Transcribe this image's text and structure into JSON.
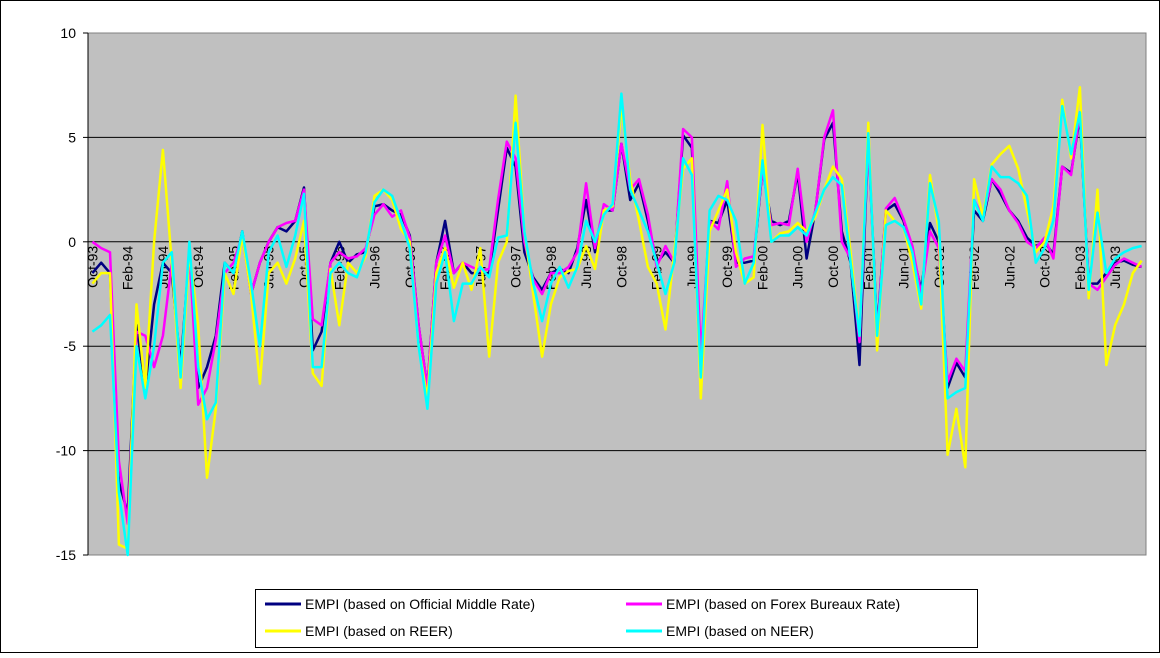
{
  "chart_data": {
    "type": "line",
    "categories": [
      "Oct-93",
      null,
      null,
      null,
      "Feb-94",
      null,
      null,
      null,
      "Jun-94",
      null,
      null,
      null,
      "Oct-94",
      null,
      null,
      null,
      "Feb-95",
      null,
      null,
      null,
      "Jun-95",
      null,
      null,
      null,
      "Oct-95",
      null,
      null,
      null,
      "Feb-96",
      null,
      null,
      null,
      "Jun-96",
      null,
      null,
      null,
      "Oct-96",
      null,
      null,
      null,
      "Feb-97",
      null,
      null,
      null,
      "Jun-97",
      null,
      null,
      null,
      "Oct-97",
      null,
      null,
      null,
      "Feb-98",
      null,
      null,
      null,
      "Jun-98",
      null,
      null,
      null,
      "Oct-98",
      null,
      null,
      null,
      "Feb-99",
      null,
      null,
      null,
      "Jun-99",
      null,
      null,
      null,
      "Oct-99",
      null,
      null,
      null,
      "Feb-00",
      null,
      null,
      null,
      "Jun-00",
      null,
      null,
      null,
      "Oct-00",
      null,
      null,
      null,
      "Feb-01",
      null,
      null,
      null,
      "Jun-01",
      null,
      null,
      null,
      "Oct-01",
      null,
      null,
      null,
      "Feb-02",
      null,
      null,
      null,
      "Jun-02",
      null,
      null,
      null,
      "Oct-02",
      null,
      null,
      null,
      "Feb-03",
      null,
      null,
      null,
      "Jun-03",
      null,
      null,
      null
    ],
    "series": [
      {
        "name": "EMPI (based on Official Middle Rate)",
        "color": "#000080",
        "values": [
          -1.5,
          -1,
          -1.5,
          -11.5,
          -13,
          -4,
          -7,
          -3,
          -1,
          -1.5,
          -6,
          -0.5,
          -7,
          -6,
          -4.5,
          -1,
          -1.5,
          0.5,
          -2.5,
          -1,
          0,
          0.7,
          0.5,
          1,
          2.6,
          -5.2,
          -4.3,
          -1,
          0,
          -1,
          -0.6,
          -0.5,
          1.7,
          1.8,
          1.5,
          1.3,
          0.3,
          -4,
          -7,
          -1,
          1,
          -1.5,
          -1,
          -1.5,
          -1.5,
          -1.5,
          1.5,
          4.5,
          3.6,
          -0.5,
          -1.7,
          -2.3,
          -1.5,
          -1.3,
          -1.5,
          -0.3,
          2,
          -0.5,
          1.5,
          1.5,
          4.7,
          2,
          2.8,
          1,
          -1,
          -0.5,
          -1,
          5.1,
          4.5,
          -6,
          1,
          0.9,
          2,
          -1,
          -1,
          -0.9,
          3.5,
          1,
          0.8,
          1,
          3.3,
          -0.8,
          1.5,
          4.9,
          5.7,
          0.5,
          -1,
          -5.9,
          5,
          -4.3,
          1.5,
          1.8,
          1,
          -0.5,
          -2.3,
          0.9,
          0,
          -7,
          -5.8,
          -6.5,
          1.5,
          1,
          3,
          2.3,
          1.5,
          1,
          0.2,
          -0.2,
          0,
          -0.6,
          3.6,
          3.3,
          6,
          -2,
          -2,
          -1.5,
          -1,
          -0.9,
          -1.1,
          -1.2
        ]
      },
      {
        "name": "EMPI (based on Forex Bureaux Rate)",
        "color": "#ff00ff",
        "values": [
          0,
          -0.3,
          -0.5,
          -10.5,
          -13.5,
          -4.3,
          -4.5,
          -6,
          -4.5,
          -1,
          -6.5,
          -0.5,
          -7.8,
          -7,
          -4.7,
          -1.5,
          -1,
          0.3,
          -2.5,
          -1,
          0,
          0.7,
          0.9,
          1,
          2.5,
          -3.7,
          -4,
          -1,
          -0.5,
          -0.8,
          -0.7,
          -0.3,
          1.3,
          1.8,
          1.2,
          1.5,
          0.2,
          -4,
          -7,
          -1,
          0.3,
          -1.5,
          -1,
          -1.2,
          -1.4,
          -1.3,
          2,
          4.8,
          4,
          0,
          -1.8,
          -2.5,
          -1.5,
          -1.5,
          -1.2,
          -0.5,
          2.8,
          -0.3,
          1.8,
          1.5,
          4.7,
          2.5,
          3,
          1.3,
          -1.2,
          -0.2,
          -1,
          5.4,
          5,
          -5.5,
          1,
          0.6,
          2.9,
          -1.2,
          -0.8,
          -0.7,
          3.5,
          0.8,
          0.9,
          0.8,
          3.5,
          0,
          1.5,
          5,
          6.3,
          0,
          -0.8,
          -4.8,
          4.9,
          -4.5,
          1.6,
          2.1,
          1.1,
          -0.2,
          -2.5,
          0.5,
          -0.3,
          -6.7,
          -5.6,
          -6.2,
          2,
          1.2,
          3,
          2.5,
          1.5,
          0.9,
          0,
          -0.3,
          0.2,
          -0.8,
          3.6,
          3.2,
          6.2,
          -2,
          -2.3,
          -1.7,
          -1.1,
          -0.8,
          -1,
          -1.2
        ]
      },
      {
        "name": "EMPI (based on REER)",
        "color": "#ffff00",
        "values": [
          -2,
          -1.5,
          -1.5,
          -14.5,
          -14.7,
          -3,
          -7,
          0,
          4.4,
          -1,
          -7,
          -0.5,
          -4,
          -11.3,
          -8,
          -1.5,
          -2.5,
          0.3,
          -2.5,
          -6.8,
          -1.5,
          -1,
          -2,
          -0.8,
          1,
          -6.3,
          -6.9,
          -1.3,
          -4,
          -1,
          -1.5,
          -0.7,
          2.2,
          2.5,
          2,
          0.6,
          0,
          -5,
          -7.5,
          -1.5,
          -0.3,
          -2.2,
          -1,
          -2.3,
          -0.3,
          -5.5,
          -1,
          0,
          7,
          0.5,
          -2.5,
          -5.5,
          -3,
          -1.7,
          -1.4,
          -1.3,
          -0.2,
          -1.3,
          1.5,
          1.7,
          6.5,
          3,
          1,
          -1.2,
          -2,
          -4.2,
          -0.5,
          3.5,
          4,
          -7.5,
          0.5,
          1.5,
          2.5,
          -0.5,
          -2,
          -1.7,
          5.6,
          0,
          0.4,
          0.5,
          0.9,
          0.5,
          1.2,
          2.5,
          3.6,
          3,
          -0.5,
          -4.5,
          5.7,
          -5.2,
          1.5,
          1,
          0.7,
          -1,
          -3.2,
          3.2,
          0.5,
          -10.2,
          -8,
          -10.8,
          3,
          1.2,
          3.7,
          4.2,
          4.6,
          3.5,
          1.5,
          -0.5,
          0,
          1.7,
          6.8,
          4,
          7.4,
          -2.7,
          2.5,
          -5.9,
          -4,
          -3,
          -1.5,
          -0.9
        ]
      },
      {
        "name": "EMPI (based on NEER)",
        "color": "#00ffff",
        "values": [
          -4.3,
          -4,
          -3.5,
          -12,
          -15,
          -5,
          -7.5,
          -5,
          -1,
          -0.5,
          -6.5,
          0,
          -6,
          -8.5,
          -7.7,
          -1,
          -1.5,
          0.5,
          -2,
          -5,
          -0.5,
          0.3,
          -1.2,
          0.3,
          2.3,
          -6,
          -6,
          -1.5,
          -1,
          -1.5,
          -1.7,
          -0.5,
          1.9,
          2.5,
          2.2,
          1,
          -0.3,
          -5,
          -8,
          -2,
          -0.5,
          -3.8,
          -2,
          -2,
          -1.2,
          -1.7,
          0.2,
          0.3,
          5.7,
          0.5,
          -2,
          -3.8,
          -2,
          -1.2,
          -2.2,
          -1.2,
          1,
          0,
          1.3,
          1.8,
          7.1,
          2.5,
          1.5,
          0.5,
          -1,
          -2.5,
          -1,
          4,
          3.2,
          -6.5,
          1.5,
          2.2,
          2,
          1,
          -2,
          -1,
          3.9,
          0,
          0.3,
          0.3,
          0.7,
          0.3,
          1.4,
          2.5,
          3.1,
          2.7,
          -1,
          -4.5,
          5.2,
          -4.5,
          0.8,
          1,
          0.7,
          -0.5,
          -3,
          2.8,
          1,
          -7.5,
          -7.2,
          -7,
          2,
          1,
          3.6,
          3.1,
          3.1,
          2.8,
          2.2,
          -1,
          -0.3,
          1,
          6.5,
          4.2,
          6.2,
          -2.3,
          1.4,
          -1.5,
          -0.8,
          -0.5,
          -0.3,
          -0.2
        ]
      }
    ],
    "ylim": [
      -15,
      10
    ],
    "yticks": [
      -15,
      -10,
      -5,
      0,
      5,
      10
    ],
    "grid": true
  }
}
